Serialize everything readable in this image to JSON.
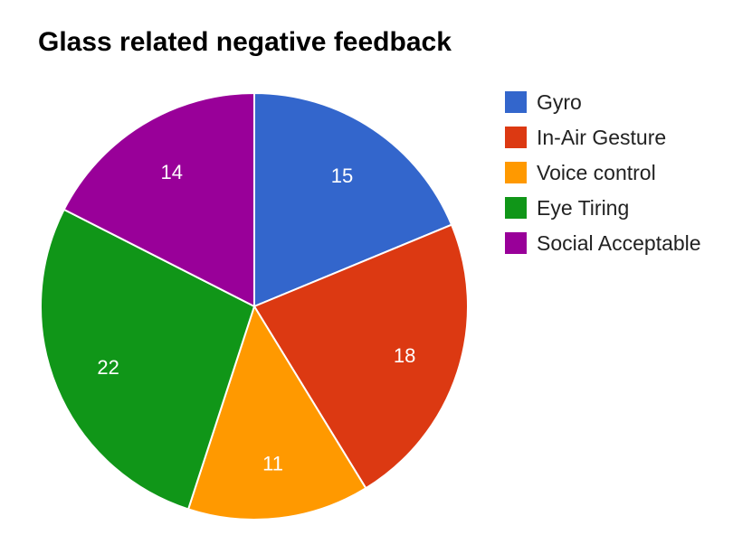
{
  "chart_data": {
    "type": "pie",
    "title": "Glass related negative feedback",
    "legend_position": "right",
    "slices": [
      {
        "label": "Gyro",
        "value": 15,
        "color": "#3366cc"
      },
      {
        "label": "In-Air Gesture",
        "value": 18,
        "color": "#dc3912"
      },
      {
        "label": "Voice control",
        "value": 11,
        "color": "#ff9900"
      },
      {
        "label": "Eye Tiring",
        "value": 22,
        "color": "#109618"
      },
      {
        "label": "Social Acceptable",
        "value": 14,
        "color": "#990099"
      }
    ]
  }
}
